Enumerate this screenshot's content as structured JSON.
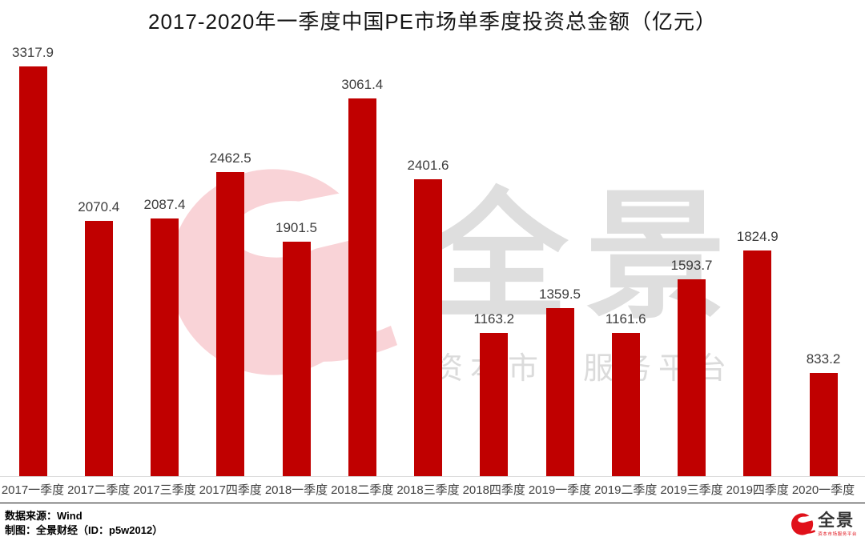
{
  "title": "2017-2020年一季度中国PE市场单季度投资总金额（亿元）",
  "chart_data": {
    "type": "bar",
    "title": "2017-2020年一季度中国PE市场单季度投资总金额（亿元）",
    "categories": [
      "2017一季度",
      "2017二季度",
      "2017三季度",
      "2017四季度",
      "2018一季度",
      "2018二季度",
      "2018三季度",
      "2018四季度",
      "2019一季度",
      "2019二季度",
      "2019三季度",
      "2019四季度",
      "2020一季度"
    ],
    "values": [
      3317.9,
      2070.4,
      2087.4,
      2462.5,
      1901.5,
      3061.4,
      2401.6,
      1163.2,
      1359.5,
      1161.6,
      1593.7,
      1824.9,
      833.2
    ],
    "unit": "亿元",
    "xlabel": "",
    "ylabel": "",
    "ylim": [
      0,
      3450
    ],
    "grid": false,
    "legend": "none",
    "data_labels": true,
    "bar_color": "#c00000"
  },
  "watermark": {
    "brand": "全景",
    "tagline": "资本市场服务平台"
  },
  "footer": {
    "source": "数据来源：Wind",
    "credit": "制图：全景财经（ID：p5w2012）",
    "logo_brand": "全景",
    "logo_tagline": "资本市场服务平台"
  },
  "colors": {
    "bar": "#c00000",
    "value_label_text": "#3d3d3d",
    "axis_label_text": "#404040",
    "watermark_pink": "#f9d3d7",
    "watermark_gray": "#dedede",
    "logo_red": "#e0111a",
    "logo_text": "#333333"
  }
}
